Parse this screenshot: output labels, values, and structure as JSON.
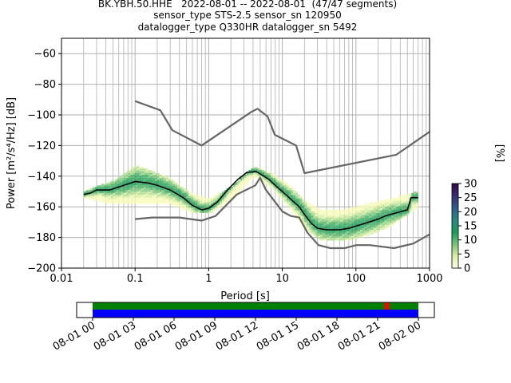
{
  "header": {
    "line1": "BK.YBH.50.HHE   2022-08-01 -- 2022-08-01  (47/47 segments)",
    "line2": "sensor_type STS-2.5 sensor_sn 120950",
    "line3": "datalogger_type Q330HR datalogger_sn 5492"
  },
  "chart_data": [
    {
      "type": "heatmap",
      "title": "BK.YBH.50.HHE   2022-08-01 -- 2022-08-01  (47/47 segments)",
      "subtitle": [
        "sensor_type STS-2.5 sensor_sn 120950",
        "datalogger_type Q330HR datalogger_sn 5492"
      ],
      "xlabel": "Period [s]",
      "ylabel": "Power [m²/s⁴/Hz] [dB]",
      "xscale": "log",
      "xlim": [
        0.01,
        1000
      ],
      "ylim": [
        -200,
        -50
      ],
      "xticks": [
        0.01,
        0.1,
        1,
        10,
        100,
        1000
      ],
      "xtick_labels": [
        "0.01",
        "0.1",
        "1",
        "10",
        "100",
        "1000"
      ],
      "yticks": [
        -200,
        -180,
        -160,
        -140,
        -120,
        -100,
        -80,
        -60
      ],
      "ytick_labels": [
        "−200",
        "−180",
        "−160",
        "−140",
        "−120",
        "−100",
        "−80",
        "−60"
      ],
      "grid": true,
      "colorbar": {
        "label": "[%]",
        "range": [
          0,
          30
        ],
        "ticks": [
          0,
          5,
          10,
          15,
          20,
          25,
          30
        ],
        "colors": [
          "#fffee5",
          "#c2e699",
          "#78c679",
          "#1aa05a",
          "#228b82",
          "#2c5f8a",
          "#3b2a78",
          "#2d0a45"
        ]
      },
      "series": [
        {
          "role": "noise-model-high",
          "color": "#666666",
          "points": [
            [
              0.1,
              -91
            ],
            [
              0.22,
              -97
            ],
            [
              0.32,
              -110
            ],
            [
              0.8,
              -120
            ],
            [
              3.8,
              -98
            ],
            [
              4.6,
              -96
            ],
            [
              6.3,
              -101
            ],
            [
              7.9,
              -113
            ],
            [
              15.4,
              -120
            ],
            [
              20,
              -138
            ],
            [
              354,
              -126
            ],
            [
              1000,
              -111
            ]
          ]
        },
        {
          "role": "noise-model-low",
          "color": "#666666",
          "points": [
            [
              0.1,
              -168
            ],
            [
              0.17,
              -167
            ],
            [
              0.4,
              -167
            ],
            [
              0.8,
              -169
            ],
            [
              1.24,
              -166
            ],
            [
              2.4,
              -152
            ],
            [
              4.3,
              -146
            ],
            [
              5.0,
              -141
            ],
            [
              6.0,
              -149
            ],
            [
              10,
              -163
            ],
            [
              13,
              -166
            ],
            [
              17,
              -167
            ],
            [
              22,
              -177
            ],
            [
              31,
              -185
            ],
            [
              45,
              -187
            ],
            [
              70,
              -187
            ],
            [
              101,
              -185
            ],
            [
              154,
              -185
            ],
            [
              328,
              -187
            ],
            [
              600,
              -184
            ],
            [
              1000,
              -178
            ]
          ]
        },
        {
          "role": "mean",
          "color": "#000000",
          "points": [
            [
              0.02,
              -152
            ],
            [
              0.025,
              -151
            ],
            [
              0.03,
              -149
            ],
            [
              0.045,
              -149
            ],
            [
              0.07,
              -146
            ],
            [
              0.1,
              -143.5
            ],
            [
              0.15,
              -144.5
            ],
            [
              0.2,
              -146
            ],
            [
              0.3,
              -149
            ],
            [
              0.45,
              -154
            ],
            [
              0.6,
              -159
            ],
            [
              0.8,
              -162
            ],
            [
              1.0,
              -161
            ],
            [
              1.3,
              -157
            ],
            [
              1.8,
              -149
            ],
            [
              2.5,
              -142
            ],
            [
              3.3,
              -137.5
            ],
            [
              4.4,
              -137
            ],
            [
              5.2,
              -139
            ],
            [
              6.5,
              -142
            ],
            [
              8,
              -146
            ],
            [
              10,
              -150
            ],
            [
              13,
              -155
            ],
            [
              17,
              -160
            ],
            [
              20,
              -165
            ],
            [
              25,
              -171
            ],
            [
              30,
              -174
            ],
            [
              40,
              -175
            ],
            [
              60,
              -175
            ],
            [
              80,
              -174
            ],
            [
              110,
              -172
            ],
            [
              150,
              -170
            ],
            [
              200,
              -168
            ],
            [
              250,
              -166
            ],
            [
              350,
              -164
            ],
            [
              500,
              -162
            ],
            [
              560,
              -154
            ],
            [
              700,
              -154
            ]
          ]
        }
      ],
      "density_band": {
        "periods": [
          0.02,
          0.05,
          0.1,
          0.3,
          0.6,
          1,
          2,
          4,
          7,
          12,
          20,
          35,
          70,
          150,
          300,
          700
        ],
        "upper": [
          -150,
          -143,
          -133,
          -142,
          -152,
          -155,
          -147,
          -134,
          -138,
          -146,
          -157,
          -163,
          -162,
          -158,
          -155,
          -150
        ],
        "lower": [
          -154,
          -158,
          -157,
          -158,
          -164,
          -164,
          -155,
          -140,
          -147,
          -160,
          -175,
          -182,
          -182,
          -178,
          -172,
          -160
        ]
      },
      "availability_bar": {
        "x_range": [
          "08-01 00",
          "08-02 00"
        ],
        "xtick_labels": [
          "08-01 00",
          "08-01 03",
          "08-01 06",
          "08-01 09",
          "08-01 12",
          "08-01 15",
          "08-01 18",
          "08-01 21",
          "08-02 00"
        ],
        "data_color": "#0000ff",
        "coverage_color": "#008000",
        "gap_color": "#ff0000",
        "gaps": [
          [
            21.5,
            21.7
          ]
        ]
      }
    }
  ]
}
